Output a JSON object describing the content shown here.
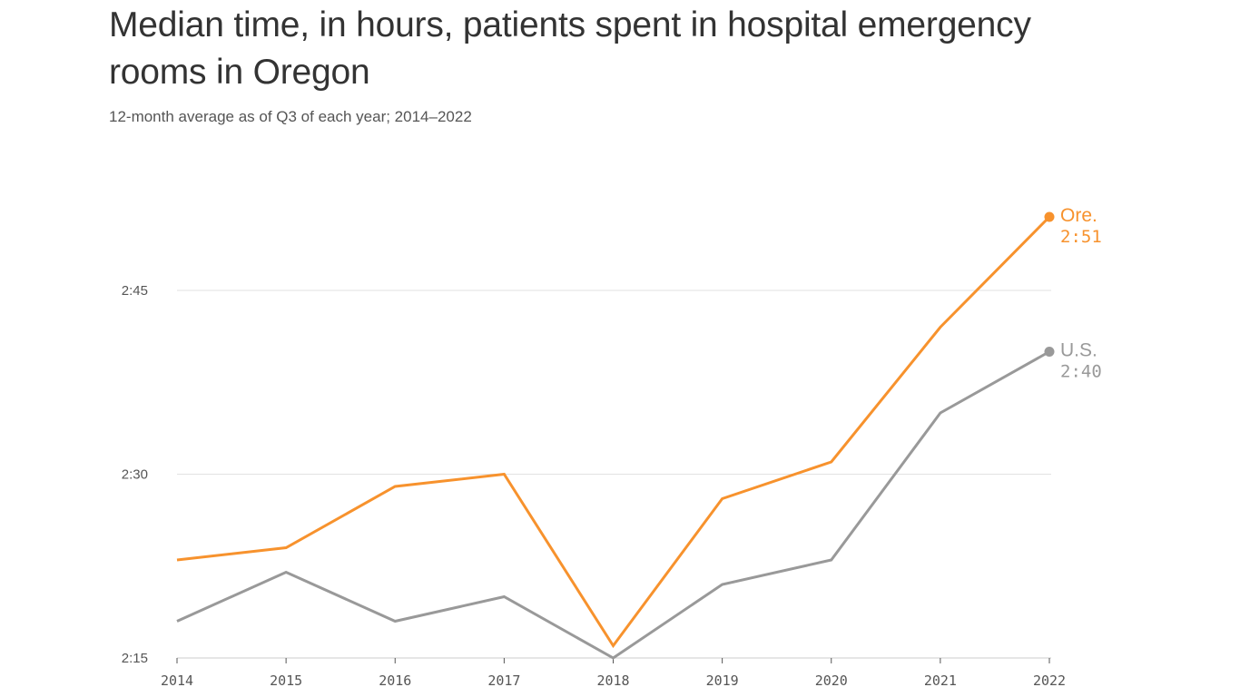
{
  "chart_data": {
    "type": "line",
    "title": "Median time, in hours, patients spent in hospital emergency rooms in Oregon",
    "subtitle": "12-month average as of Q3 of each year; 2014–2022",
    "xlabel": "",
    "ylabel": "",
    "x": [
      2014,
      2015,
      2016,
      2017,
      2018,
      2019,
      2020,
      2021,
      2022
    ],
    "x_tick_labels": [
      "2014",
      "2015",
      "2016",
      "2017",
      "2018",
      "2019",
      "2020",
      "2021",
      "2022"
    ],
    "y_unit": "minutes",
    "ylim": [
      135,
      180
    ],
    "y_ticks": [
      {
        "value": 135,
        "label": "2:15"
      },
      {
        "value": 150,
        "label": "2:30"
      },
      {
        "value": 165,
        "label": "2:45"
      }
    ],
    "grid": true,
    "series": [
      {
        "name": "Ore.",
        "color": "#F7922D",
        "values": [
          143,
          144,
          149,
          150,
          136,
          148,
          151,
          162,
          171
        ],
        "end_label": "Ore.",
        "end_value_label": "2:51"
      },
      {
        "name": "U.S.",
        "color": "#999999",
        "values": [
          138,
          142,
          138,
          140,
          135,
          141,
          143,
          155,
          160
        ],
        "end_label": "U.S.",
        "end_value_label": "2:40"
      }
    ]
  },
  "colors": {
    "grid": "#e2e2e2",
    "axis": "#555555",
    "text": "#333333"
  }
}
